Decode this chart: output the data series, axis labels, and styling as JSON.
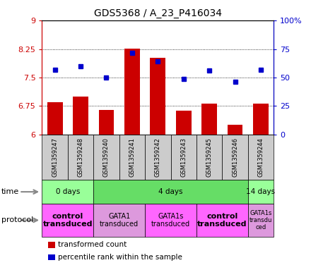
{
  "title": "GDS5368 / A_23_P416034",
  "samples": [
    "GSM1359247",
    "GSM1359248",
    "GSM1359240",
    "GSM1359241",
    "GSM1359242",
    "GSM1359243",
    "GSM1359245",
    "GSM1359246",
    "GSM1359244"
  ],
  "transformed_count": [
    6.85,
    7.0,
    6.65,
    8.27,
    8.03,
    6.63,
    6.82,
    6.25,
    6.82
  ],
  "percentile_rank": [
    57,
    60,
    50,
    72,
    64,
    49,
    56,
    46,
    57
  ],
  "ylim_left": [
    6,
    9
  ],
  "ylim_right": [
    0,
    100
  ],
  "yticks_left": [
    6,
    6.75,
    7.5,
    8.25,
    9
  ],
  "yticks_right": [
    0,
    25,
    50,
    75,
    100
  ],
  "ytick_labels_left": [
    "6",
    "6.75",
    "7.5",
    "8.25",
    "9"
  ],
  "ytick_labels_right": [
    "0",
    "25",
    "50",
    "75",
    "100%"
  ],
  "bar_color": "#cc0000",
  "dot_color": "#0000cc",
  "bar_bottom": 6,
  "bar_width": 0.6,
  "time_groups": [
    {
      "label": "0 days",
      "start": 0,
      "end": 2,
      "color": "#99ff99"
    },
    {
      "label": "4 days",
      "start": 2,
      "end": 8,
      "color": "#66dd66"
    },
    {
      "label": "14 days",
      "start": 8,
      "end": 9,
      "color": "#99ff99"
    }
  ],
  "protocol_groups": [
    {
      "label": "control\ntransduced",
      "start": 0,
      "end": 2,
      "color": "#ff66ff",
      "bold": true,
      "fontsize": 8
    },
    {
      "label": "GATA1\ntransduced",
      "start": 2,
      "end": 4,
      "color": "#dd99dd",
      "bold": false,
      "fontsize": 7
    },
    {
      "label": "GATA1s\ntransduced",
      "start": 4,
      "end": 6,
      "color": "#ff66ff",
      "bold": false,
      "fontsize": 7
    },
    {
      "label": "control\ntransduced",
      "start": 6,
      "end": 8,
      "color": "#ff66ff",
      "bold": true,
      "fontsize": 8
    },
    {
      "label": "GATA1s\ntransdu\nced",
      "start": 8,
      "end": 9,
      "color": "#dd99dd",
      "bold": false,
      "fontsize": 6
    }
  ],
  "legend_items": [
    {
      "color": "#cc0000",
      "label": "transformed count"
    },
    {
      "color": "#0000cc",
      "label": "percentile rank within the sample"
    }
  ],
  "left_color": "#cc0000",
  "right_color": "#0000cc",
  "sample_bg": "#cccccc",
  "dot_size": 5
}
